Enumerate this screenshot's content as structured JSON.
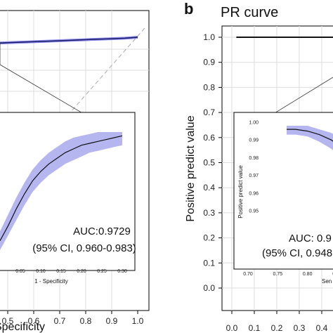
{
  "chart_data": [
    {
      "panel_id": "",
      "type": "line",
      "title": "",
      "xlabel": "Specificity",
      "ylabel": "",
      "x_ticks": [
        "0.5",
        "0.6",
        "0.7",
        "0.8",
        "0.9",
        "1.0"
      ],
      "xlim": [
        0.45,
        1.0
      ],
      "ylim": [
        0.75,
        1.02
      ],
      "grid": true,
      "series": [
        {
          "x": [
            0.45,
            0.5,
            0.6,
            0.7,
            0.8,
            0.9,
            0.95,
            1.0
          ],
          "y": [
            0.988,
            0.989,
            0.991,
            0.993,
            0.995,
            0.997,
            0.998,
            1.0
          ]
        }
      ],
      "inset": {
        "xlabel": "1 - Specificity",
        "x_ticks": [
          "0.05",
          "0.10",
          "0.15",
          "0.20",
          "0.25",
          "0.30"
        ],
        "xlim": [
          0.0,
          0.31
        ],
        "ylim": [
          0.25,
          1.02
        ],
        "series": [
          {
            "x": [
              0.0,
              0.02,
              0.04,
              0.06,
              0.08,
              0.1,
              0.12,
              0.14,
              0.16,
              0.18,
              0.2,
              0.22,
              0.24,
              0.26,
              0.28,
              0.3
            ],
            "y": [
              0.39,
              0.47,
              0.56,
              0.64,
              0.71,
              0.76,
              0.8,
              0.83,
              0.86,
              0.88,
              0.9,
              0.91,
              0.92,
              0.93,
              0.94,
              0.95
            ],
            "lower": [
              0.34,
              0.42,
              0.5,
              0.58,
              0.65,
              0.7,
              0.74,
              0.77,
              0.8,
              0.82,
              0.84,
              0.86,
              0.87,
              0.88,
              0.89,
              0.9
            ],
            "upper": [
              0.44,
              0.53,
              0.62,
              0.7,
              0.77,
              0.82,
              0.86,
              0.89,
              0.92,
              0.94,
              0.95,
              0.96,
              0.97,
              0.97,
              0.97,
              0.97
            ]
          }
        ]
      },
      "annotation": {
        "auc": "AUC:0.9729",
        "ci": "(95% CI, 0.960-0.983)"
      }
    },
    {
      "panel_id": "b",
      "type": "line",
      "title": "PR curve",
      "xlabel": "",
      "ylabel": "Positive predict value",
      "x_ticks": [
        "0.0",
        "0.1",
        "0.2",
        "0.3",
        "0.4"
      ],
      "y_ticks": [
        "0.0",
        "0.1",
        "0.2",
        "0.3",
        "0.4",
        "0.5",
        "0.6",
        "0.7",
        "0.8",
        "0.9",
        "1.0"
      ],
      "xlim": [
        0.0,
        0.45
      ],
      "ylim": [
        0.0,
        1.0
      ],
      "grid": true,
      "series": [
        {
          "x": [
            0.02,
            0.45
          ],
          "y": [
            1.0,
            1.0
          ]
        }
      ],
      "inset": {
        "xlabel": "Sen",
        "ylabel": "Positive predict value",
        "x_ticks": [
          "0.70",
          "0.75",
          "0.80",
          "0.85"
        ],
        "y_ticks": [
          "1.00",
          "0.99",
          "0.98",
          "0.97",
          "0.96",
          "0.95"
        ],
        "xlim": [
          0.68,
          0.92
        ],
        "ylim": [
          0.942,
          1.002
        ],
        "series": [
          {
            "x": [
              0.765,
              0.78,
              0.8,
              0.82,
              0.84,
              0.86,
              0.88,
              0.9,
              0.92
            ],
            "y": [
              0.996,
              0.996,
              0.995,
              0.993,
              0.99,
              0.985,
              0.978,
              0.97,
              0.962
            ],
            "lower": [
              0.993,
              0.993,
              0.992,
              0.989,
              0.985,
              0.979,
              0.971,
              0.962,
              0.953
            ],
            "upper": [
              0.998,
              0.998,
              0.998,
              0.996,
              0.994,
              0.99,
              0.985,
              0.978,
              0.971
            ]
          }
        ]
      },
      "annotation": {
        "auc": "AUC: 0.9",
        "ci": "(95% CI, 0.948"
      }
    }
  ]
}
